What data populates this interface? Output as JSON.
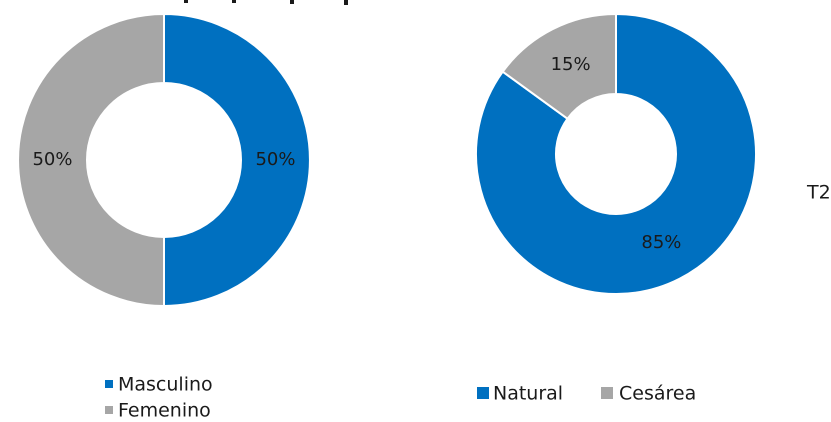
{
  "colors": {
    "blue": "#0070c0",
    "gray": "#a6a6a6"
  },
  "side_label": "T2",
  "chart_data": [
    {
      "type": "pie",
      "donut": true,
      "series": [
        {
          "name": "Masculino",
          "value": 50,
          "label": "50%",
          "color": "#0070c0"
        },
        {
          "name": "Femenino",
          "value": 50,
          "label": "50%",
          "color": "#a6a6a6"
        }
      ],
      "legend": {
        "placement": "bottom",
        "orientation": "vertical",
        "entries": [
          "Masculino",
          "Femenino"
        ]
      }
    },
    {
      "type": "pie",
      "donut": true,
      "series": [
        {
          "name": "Natural",
          "value": 85,
          "label": "85%",
          "color": "#0070c0"
        },
        {
          "name": "Cesárea",
          "value": 15,
          "label": "15%",
          "color": "#a6a6a6"
        }
      ],
      "legend": {
        "placement": "bottom",
        "orientation": "horizontal",
        "entries": [
          "Natural",
          "Cesárea"
        ]
      }
    }
  ]
}
